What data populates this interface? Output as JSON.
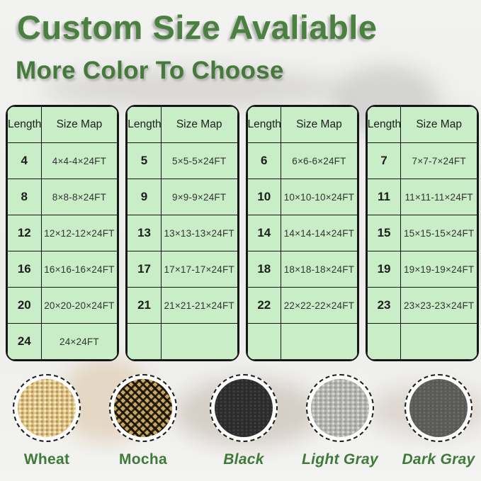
{
  "title": "Custom Size Avaliable",
  "subtitle": "More Color To Choose",
  "colors": {
    "title_green": "#4a8040",
    "label_green": "#3e7b38",
    "table_background": "#c9edc6",
    "table_border": "#161616"
  },
  "tables": [
    {
      "headers": [
        "Length",
        "Size Map"
      ],
      "rows": [
        [
          "4",
          "4×4-4×24FT"
        ],
        [
          "8",
          "8×8-8×24FT"
        ],
        [
          "12",
          "12×12-12×24FT"
        ],
        [
          "16",
          "16×16-16×24FT"
        ],
        [
          "20",
          "20×20-20×24FT"
        ],
        [
          "24",
          "24×24FT"
        ]
      ]
    },
    {
      "headers": [
        "Length",
        "Size Map"
      ],
      "rows": [
        [
          "5",
          "5×5-5×24FT"
        ],
        [
          "9",
          "9×9-9×24FT"
        ],
        [
          "13",
          "13×13-13×24FT"
        ],
        [
          "17",
          "17×17-17×24FT"
        ],
        [
          "21",
          "21×21-21×24FT"
        ],
        [
          "",
          ""
        ]
      ]
    },
    {
      "headers": [
        "Length",
        "Size Map"
      ],
      "rows": [
        [
          "6",
          "6×6-6×24FT"
        ],
        [
          "10",
          "10×10-10×24FT"
        ],
        [
          "14",
          "14×14-14×24FT"
        ],
        [
          "18",
          "18×18-18×24FT"
        ],
        [
          "22",
          "22×22-22×24FT"
        ],
        [
          "",
          ""
        ]
      ]
    },
    {
      "headers": [
        "Length",
        "Size Map"
      ],
      "rows": [
        [
          "7",
          "7×7-7×24FT"
        ],
        [
          "11",
          "11×11-11×24FT"
        ],
        [
          "15",
          "15×15-15×24FT"
        ],
        [
          "19",
          "19×19-19×24FT"
        ],
        [
          "23",
          "23×23-23×24FT"
        ],
        [
          "",
          ""
        ]
      ]
    }
  ],
  "swatches": [
    {
      "label": "Wheat",
      "texture": "wheat",
      "italic": false,
      "base_color": "#e0c589"
    },
    {
      "label": "Mocha",
      "texture": "mocha",
      "italic": false,
      "base_color": "#c9a55e"
    },
    {
      "label": "Black",
      "texture": "black",
      "italic": true,
      "base_color": "#2b2b2b"
    },
    {
      "label": "Light Gray",
      "texture": "light-gray",
      "italic": true,
      "base_color": "#b4b4b2"
    },
    {
      "label": "Dark Gray",
      "texture": "dark-gray",
      "italic": true,
      "base_color": "#595957"
    }
  ]
}
